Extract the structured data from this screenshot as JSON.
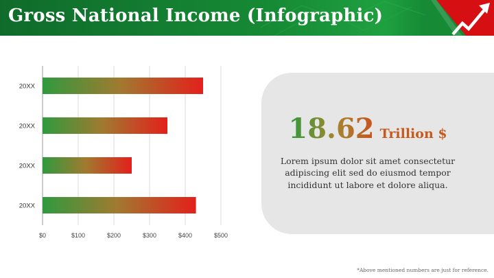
{
  "header": {
    "title": "Gross National Income (Infographic)"
  },
  "info": {
    "figure": "18.62",
    "unit": "Trillion $",
    "text": "Lorem ipsum dolor sit amet consectetur adipiscing elit sed do eiusmod tempor incididunt ut labore et dolore aliqua."
  },
  "footnote": "*Above mentioned numbers are just for reference.",
  "chart_data": {
    "type": "bar",
    "orientation": "horizontal",
    "categories": [
      "20XX",
      "20XX",
      "20XX",
      "20XX"
    ],
    "values": [
      450,
      350,
      250,
      430
    ],
    "xlim": [
      0,
      500
    ],
    "xticks": [
      0,
      100,
      200,
      300,
      400,
      500
    ],
    "tick_format": "$",
    "grid": true,
    "title": "",
    "xlabel": "",
    "ylabel": "",
    "colors": {
      "bar_start": "#2f9a3e",
      "bar_end": "#e3201b"
    }
  }
}
